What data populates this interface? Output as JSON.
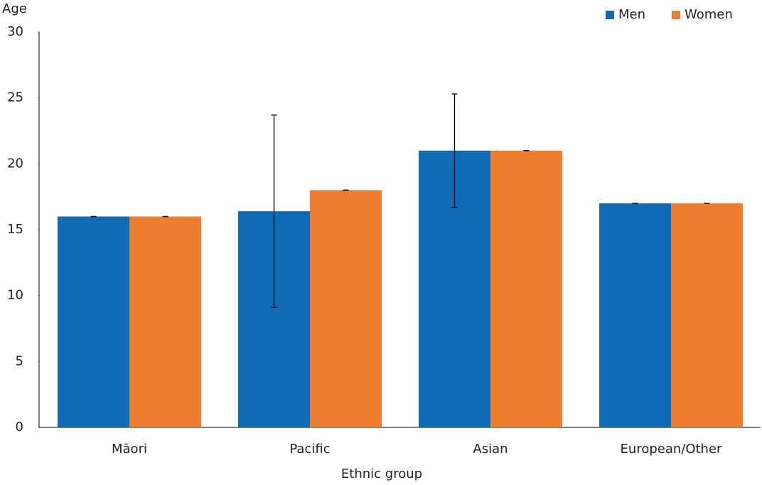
{
  "chart_data": {
    "type": "bar",
    "y_label": "Age",
    "x_label": "Ethnic group",
    "categories": [
      "Māori",
      "Pacific",
      "Asian",
      "European/Other"
    ],
    "series": [
      {
        "name": "Men",
        "color": "#106bb5",
        "values": [
          16,
          16.4,
          21,
          17
        ],
        "errors": [
          0,
          7.3,
          4.3,
          0
        ]
      },
      {
        "name": "Women",
        "color": "#ed7d31",
        "values": [
          16,
          18,
          21,
          17
        ],
        "errors": [
          0,
          0,
          0,
          0
        ]
      }
    ],
    "ylim": [
      0,
      30
    ],
    "yticks": [
      0,
      5,
      10,
      15,
      20,
      25,
      30
    ],
    "grid": false,
    "legend": "top-right"
  }
}
